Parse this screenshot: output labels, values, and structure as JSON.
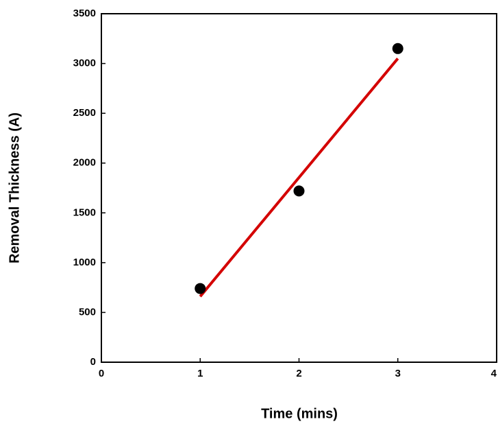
{
  "chart_data": {
    "type": "scatter",
    "x_label": "Time (mins)",
    "y_label": "Removal Thickness (A)",
    "xlim": [
      0,
      4
    ],
    "xticks": [
      0,
      1,
      2,
      3,
      4
    ],
    "ylim": [
      0,
      3500
    ],
    "yticks": [
      0,
      500,
      1000,
      1500,
      2000,
      2500,
      3000,
      3500
    ],
    "series": [
      {
        "color": "#000000",
        "x": [
          1,
          2,
          3
        ],
        "values": [
          740,
          1720,
          3150
        ]
      },
      {
        "type": "line",
        "color": "#d40000",
        "x": [
          1,
          3
        ],
        "values": [
          660,
          3050
        ]
      }
    ]
  }
}
